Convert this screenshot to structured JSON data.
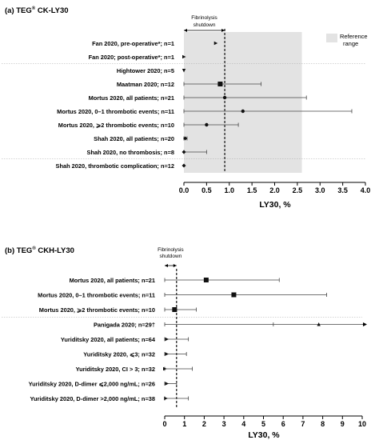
{
  "chart_data": [
    {
      "type": "forest",
      "panel_prefix": "(a) TEG",
      "panel_suffix": " CK-LY30",
      "panel_sup": "®",
      "xlabel": "LY30, %",
      "xlim": [
        0,
        4.0
      ],
      "ticks": [
        "0.0",
        "0.5",
        "1.0",
        "1.5",
        "2.0",
        "2.5",
        "3.0",
        "3.5",
        "4.0"
      ],
      "shutdown_label": [
        "Fibrinolysis",
        "shutdown"
      ],
      "shutdown_value": 0.9,
      "reference_range": [
        0,
        2.6
      ],
      "reference_label": [
        "Reference",
        "range"
      ],
      "separators_after": [
        1,
        8
      ],
      "rows": [
        {
          "label": "Fan 2020, pre-operative*; n=1",
          "point": 0.7,
          "lo": null,
          "hi": null,
          "marker": "triangle-right"
        },
        {
          "label": "Fan 2020; post-operative*; n=1",
          "point": 0.0,
          "lo": null,
          "hi": null,
          "marker": "triangle-right"
        },
        {
          "label": "Hightower 2020; n=5",
          "point": 0.0,
          "lo": null,
          "hi": null,
          "marker": "triangle-down"
        },
        {
          "label": "Maatman 2020; n=12",
          "point": 0.8,
          "lo": 0.0,
          "hi": 1.7,
          "marker": "square"
        },
        {
          "label": "Mortus 2020, all patients; n=21",
          "point": 0.9,
          "lo": 0.0,
          "hi": 2.7,
          "marker": "circle"
        },
        {
          "label": "Mortus 2020, 0–1 thrombotic events; n=11",
          "point": 1.3,
          "lo": 0.0,
          "hi": 3.7,
          "marker": "circle"
        },
        {
          "label": "Mortus 2020, ⩾2 thrombotic events; n=10",
          "point": 0.5,
          "lo": 0.0,
          "hi": 1.2,
          "marker": "circle"
        },
        {
          "label": "Shah 2020, all patients; n=20",
          "point": 0.03,
          "lo": 0.0,
          "hi": 0.07,
          "marker": "diamond"
        },
        {
          "label": "Shah 2020, no thrombosis; n=8",
          "point": 0.0,
          "lo": 0.0,
          "hi": 0.5,
          "marker": "diamond"
        },
        {
          "label": "Shah 2020, thrombotic complication; n=12",
          "point": 0.0,
          "lo": null,
          "hi": null,
          "marker": "diamond"
        }
      ]
    },
    {
      "type": "forest",
      "panel_prefix": "(b) TEG",
      "panel_suffix": " CKH-LY30",
      "panel_sup": "®",
      "xlabel": "LY30, %",
      "xlim": [
        0,
        10
      ],
      "ticks": [
        "0",
        "1",
        "2",
        "3",
        "4",
        "5",
        "6",
        "7",
        "8",
        "9",
        "10"
      ],
      "shutdown_label": [
        "Fibrinolysis",
        "shutdown"
      ],
      "shutdown_value": 0.6,
      "separators_after": [
        2
      ],
      "rows": [
        {
          "label": "Mortus 2020, all patients; n=21",
          "point": 2.1,
          "lo": 0.0,
          "hi": 5.8,
          "marker": "square"
        },
        {
          "label": "Mortus 2020, 0–1 thrombotic events; n=11",
          "point": 3.5,
          "lo": 0.0,
          "hi": 8.2,
          "marker": "square"
        },
        {
          "label": "Mortus 2020, ⩾2 thrombotic events; n=10",
          "point": 0.5,
          "lo": 0.0,
          "hi": 1.6,
          "marker": "square"
        },
        {
          "label": "Panigada 2020; n=29†",
          "point": 7.8,
          "lo": 0.0,
          "hi": 10.2,
          "mid_tick": 5.5,
          "marker": "triangle-up"
        },
        {
          "label": "Yuriditsky 2020, all patients; n=64",
          "point": 0.1,
          "lo": 0.0,
          "hi": 1.2,
          "marker": "triangle-right"
        },
        {
          "label": "Yuriditsky 2020, ⩽3; n=32",
          "point": 0.1,
          "lo": 0.0,
          "hi": 1.1,
          "marker": "triangle-right"
        },
        {
          "label": "Yuriditsky 2020, CI > 3; n=32",
          "point": 0.0,
          "lo": 0.0,
          "hi": 1.4,
          "marker": "triangle-right"
        },
        {
          "label": "Yuriditsky 2020, D-dimer ⩽2,000 ng/mL; n=26",
          "point": 0.1,
          "lo": 0.0,
          "hi": 0.6,
          "marker": "triangle-right"
        },
        {
          "label": "Yuriditsky 2020, D-dimer >2,000 ng/mL; n=38",
          "point": 0.05,
          "lo": 0.0,
          "hi": 1.2,
          "marker": "triangle-right"
        }
      ]
    }
  ]
}
